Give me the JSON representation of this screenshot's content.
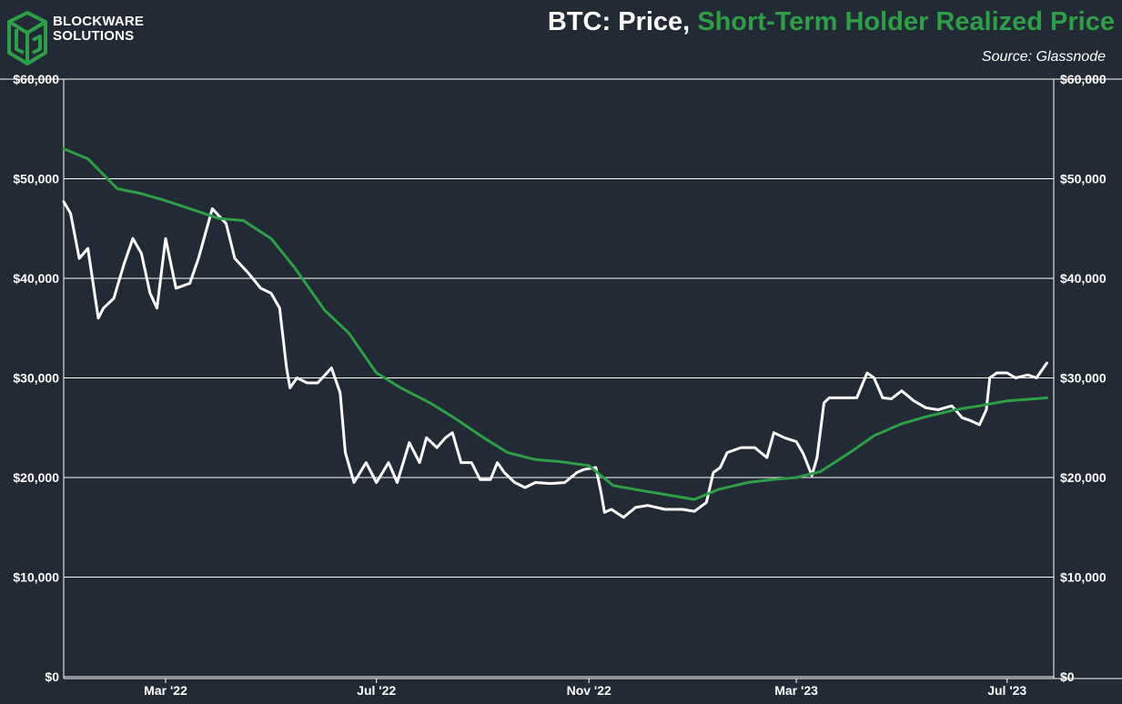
{
  "brand": {
    "line1": "BLOCKWARE",
    "line2": "SOLUTIONS",
    "color": "#2e9e47"
  },
  "header": {
    "title_part1": "BTC: Price, ",
    "title_part2": "Short-Term Holder Realized Price",
    "source": "Source: Glassnode"
  },
  "chart_data": {
    "type": "line",
    "title": "BTC: Price, Short-Term Holder Realized Price",
    "xlabel": "",
    "ylabel": "",
    "x_range": [
      "2022-01-01",
      "2023-07-28"
    ],
    "ylim": [
      0,
      60000
    ],
    "y_ticks": [
      0,
      10000,
      20000,
      30000,
      40000,
      50000,
      60000
    ],
    "y_tick_labels": [
      "$0",
      "$10,000",
      "$20,000",
      "$30,000",
      "$40,000",
      "$50,000",
      "$60,000"
    ],
    "x_ticks": [
      "2022-03-01",
      "2022-07-01",
      "2022-11-01",
      "2023-03-01",
      "2023-07-01"
    ],
    "x_tick_labels": [
      "Mar '22",
      "Jul '22",
      "Nov '22",
      "Mar '23",
      "Jul '23"
    ],
    "grid": true,
    "axes": "both sides",
    "series": [
      {
        "name": "Price",
        "color": "#ffffff",
        "x": [
          "2022-01-01",
          "2022-01-05",
          "2022-01-10",
          "2022-01-15",
          "2022-01-21",
          "2022-01-24",
          "2022-01-30",
          "2022-02-05",
          "2022-02-10",
          "2022-02-15",
          "2022-02-20",
          "2022-02-24",
          "2022-03-01",
          "2022-03-07",
          "2022-03-15",
          "2022-03-20",
          "2022-03-28",
          "2022-04-05",
          "2022-04-10",
          "2022-04-18",
          "2022-04-25",
          "2022-05-01",
          "2022-05-06",
          "2022-05-10",
          "2022-05-12",
          "2022-05-16",
          "2022-05-22",
          "2022-05-28",
          "2022-06-05",
          "2022-06-10",
          "2022-06-13",
          "2022-06-18",
          "2022-06-25",
          "2022-07-01",
          "2022-07-08",
          "2022-07-13",
          "2022-07-20",
          "2022-07-26",
          "2022-07-30",
          "2022-08-05",
          "2022-08-10",
          "2022-08-14",
          "2022-08-19",
          "2022-08-25",
          "2022-08-30",
          "2022-09-05",
          "2022-09-09",
          "2022-09-13",
          "2022-09-19",
          "2022-09-25",
          "2022-10-01",
          "2022-10-10",
          "2022-10-18",
          "2022-10-25",
          "2022-10-29",
          "2022-11-05",
          "2022-11-08",
          "2022-11-10",
          "2022-11-14",
          "2022-11-21",
          "2022-11-28",
          "2022-12-05",
          "2022-12-15",
          "2022-12-25",
          "2023-01-01",
          "2023-01-08",
          "2023-01-12",
          "2023-01-16",
          "2023-01-20",
          "2023-01-28",
          "2023-02-05",
          "2023-02-12",
          "2023-02-16",
          "2023-02-22",
          "2023-03-01",
          "2023-03-05",
          "2023-03-10",
          "2023-03-13",
          "2023-03-17",
          "2023-03-20",
          "2023-03-28",
          "2023-04-05",
          "2023-04-11",
          "2023-04-15",
          "2023-04-20",
          "2023-04-25",
          "2023-05-01",
          "2023-05-08",
          "2023-05-15",
          "2023-05-22",
          "2023-05-30",
          "2023-06-05",
          "2023-06-10",
          "2023-06-15",
          "2023-06-19",
          "2023-06-21",
          "2023-06-25",
          "2023-07-01",
          "2023-07-06",
          "2023-07-13",
          "2023-07-18",
          "2023-07-24"
        ],
        "y": [
          47700,
          46500,
          42000,
          43000,
          36000,
          37000,
          38000,
          41500,
          44000,
          42500,
          38500,
          37000,
          44000,
          39000,
          39500,
          42000,
          47000,
          45500,
          42000,
          40500,
          39000,
          38500,
          37000,
          31000,
          29000,
          30000,
          29500,
          29500,
          31000,
          28500,
          22500,
          19500,
          21500,
          19500,
          21500,
          19500,
          23500,
          21500,
          24000,
          23000,
          24000,
          24500,
          21500,
          21500,
          19800,
          19800,
          21500,
          20500,
          19500,
          19000,
          19500,
          19400,
          19500,
          20500,
          20800,
          21000,
          18500,
          16500,
          16800,
          16000,
          17000,
          17200,
          16800,
          16800,
          16600,
          17500,
          20500,
          21000,
          22500,
          23000,
          23000,
          22000,
          24500,
          24000,
          23600,
          22400,
          20200,
          22000,
          27500,
          28000,
          28000,
          28000,
          30500,
          30000,
          28000,
          27900,
          28700,
          27700,
          27000,
          26800,
          27200,
          26000,
          25700,
          25300,
          26800,
          30000,
          30500,
          30500,
          30000,
          30300,
          30000,
          31500
        ]
      },
      {
        "name": "Short-Term Holder Realized Price",
        "color": "#2e9e47",
        "x": [
          "2022-01-01",
          "2022-01-15",
          "2022-02-01",
          "2022-02-15",
          "2022-03-01",
          "2022-03-15",
          "2022-04-01",
          "2022-04-15",
          "2022-05-01",
          "2022-05-15",
          "2022-06-01",
          "2022-06-15",
          "2022-07-01",
          "2022-07-15",
          "2022-08-01",
          "2022-08-15",
          "2022-09-01",
          "2022-09-15",
          "2022-10-01",
          "2022-10-15",
          "2022-11-01",
          "2022-11-15",
          "2022-12-01",
          "2022-12-15",
          "2023-01-01",
          "2023-01-15",
          "2023-02-01",
          "2023-02-15",
          "2023-03-01",
          "2023-03-15",
          "2023-04-01",
          "2023-04-15",
          "2023-05-01",
          "2023-05-15",
          "2023-06-01",
          "2023-06-15",
          "2023-07-01",
          "2023-07-24"
        ],
        "y": [
          53000,
          52000,
          49000,
          48500,
          47800,
          47000,
          46000,
          45800,
          44000,
          41000,
          36800,
          34500,
          30500,
          29000,
          27500,
          26000,
          24000,
          22500,
          21800,
          21600,
          21200,
          19200,
          18700,
          18300,
          17800,
          18800,
          19500,
          19800,
          20000,
          20600,
          22500,
          24200,
          25400,
          26100,
          26800,
          27200,
          27700,
          28000
        ]
      }
    ]
  }
}
